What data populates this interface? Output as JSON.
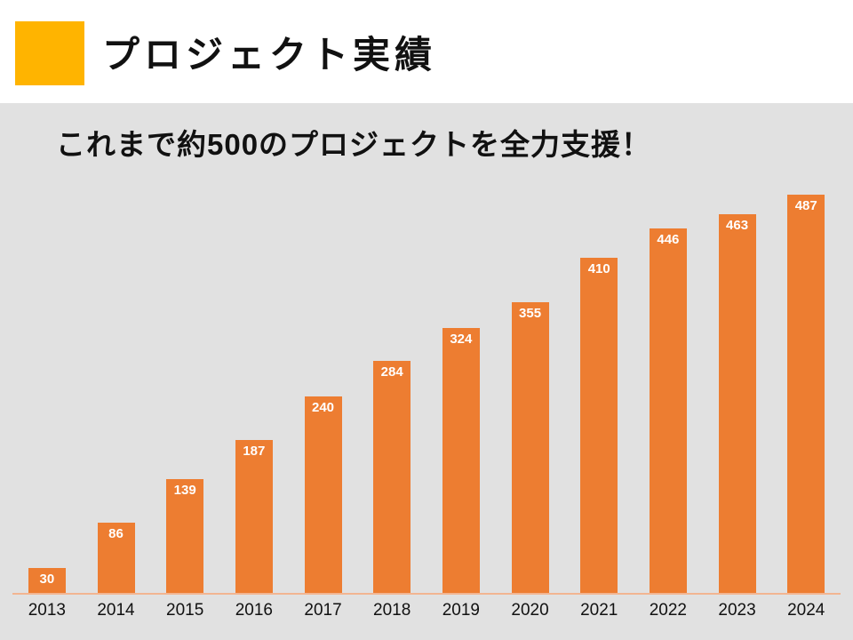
{
  "slide": {
    "title": "プロジェクト実績",
    "subtitle": "これまで約500のプロジェクトを全力支援！"
  },
  "colors": {
    "accent_square": "#ffb400",
    "header_background": "#ffffff",
    "slide_background": "#e1e1e1",
    "bar": "#ed7d31",
    "bar_value_text": "#ffffff",
    "axis_line": "#f2b591",
    "text": "#111111"
  },
  "chart_data": {
    "type": "bar",
    "categories": [
      "2013",
      "2014",
      "2015",
      "2016",
      "2017",
      "2018",
      "2019",
      "2020",
      "2021",
      "2022",
      "2023",
      "2024"
    ],
    "values": [
      30,
      86,
      139,
      187,
      240,
      284,
      324,
      355,
      410,
      446,
      463,
      487
    ],
    "title": "",
    "xlabel": "",
    "ylabel": "",
    "ylim": [
      0,
      500
    ],
    "grid": false,
    "legend": "none",
    "value_labels": true,
    "value_label_position": "inside-top"
  }
}
